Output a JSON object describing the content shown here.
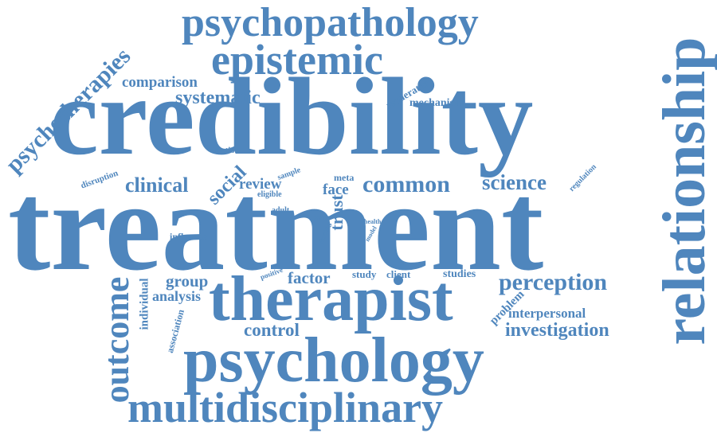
{
  "word_color": "#4f86bd",
  "words": [
    {
      "text": "treatment",
      "weight": 100
    },
    {
      "text": "credibility",
      "weight": 95
    },
    {
      "text": "therapist",
      "weight": 64
    },
    {
      "text": "psychology",
      "weight": 62
    },
    {
      "text": "relationship",
      "weight": 60
    },
    {
      "text": "psychopathology",
      "weight": 40
    },
    {
      "text": "epistemic",
      "weight": 40
    },
    {
      "text": "multidisciplinary",
      "weight": 40
    },
    {
      "text": "outcome",
      "weight": 35
    },
    {
      "text": "psychotherapies",
      "weight": 25
    },
    {
      "text": "common",
      "weight": 22
    },
    {
      "text": "perception",
      "weight": 20
    },
    {
      "text": "science",
      "weight": 18
    },
    {
      "text": "clinical",
      "weight": 18
    },
    {
      "text": "social",
      "weight": 18
    },
    {
      "text": "investigation",
      "weight": 16
    },
    {
      "text": "systematic",
      "weight": 16
    },
    {
      "text": "control",
      "weight": 16
    },
    {
      "text": "trust",
      "weight": 15
    },
    {
      "text": "group",
      "weight": 14
    },
    {
      "text": "factor",
      "weight": 14
    },
    {
      "text": "comparison",
      "weight": 13
    },
    {
      "text": "review",
      "weight": 13
    },
    {
      "text": "face",
      "weight": 13
    },
    {
      "text": "analysis",
      "weight": 13
    },
    {
      "text": "interpersonal",
      "weight": 12
    },
    {
      "text": "individual",
      "weight": 10
    },
    {
      "text": "problem",
      "weight": 10
    },
    {
      "text": "mechanism",
      "weight": 9
    },
    {
      "text": "moderator",
      "weight": 9
    },
    {
      "text": "studies",
      "weight": 9
    },
    {
      "text": "study",
      "weight": 9
    },
    {
      "text": "client",
      "weight": 9
    },
    {
      "text": "meta",
      "weight": 8
    },
    {
      "text": "influence",
      "weight": 8
    },
    {
      "text": "association",
      "weight": 8
    },
    {
      "text": "emotion",
      "weight": 7
    },
    {
      "text": "disruption",
      "weight": 7
    },
    {
      "text": "sample",
      "weight": 6
    },
    {
      "text": "eligible",
      "weight": 6
    },
    {
      "text": "regulation",
      "weight": 6
    },
    {
      "text": "finding",
      "weight": 6
    },
    {
      "text": "adult",
      "weight": 6
    },
    {
      "text": "positive",
      "weight": 6
    },
    {
      "text": "result",
      "weight": 5
    },
    {
      "text": "health",
      "weight": 5
    },
    {
      "text": "model",
      "weight": 5
    }
  ]
}
